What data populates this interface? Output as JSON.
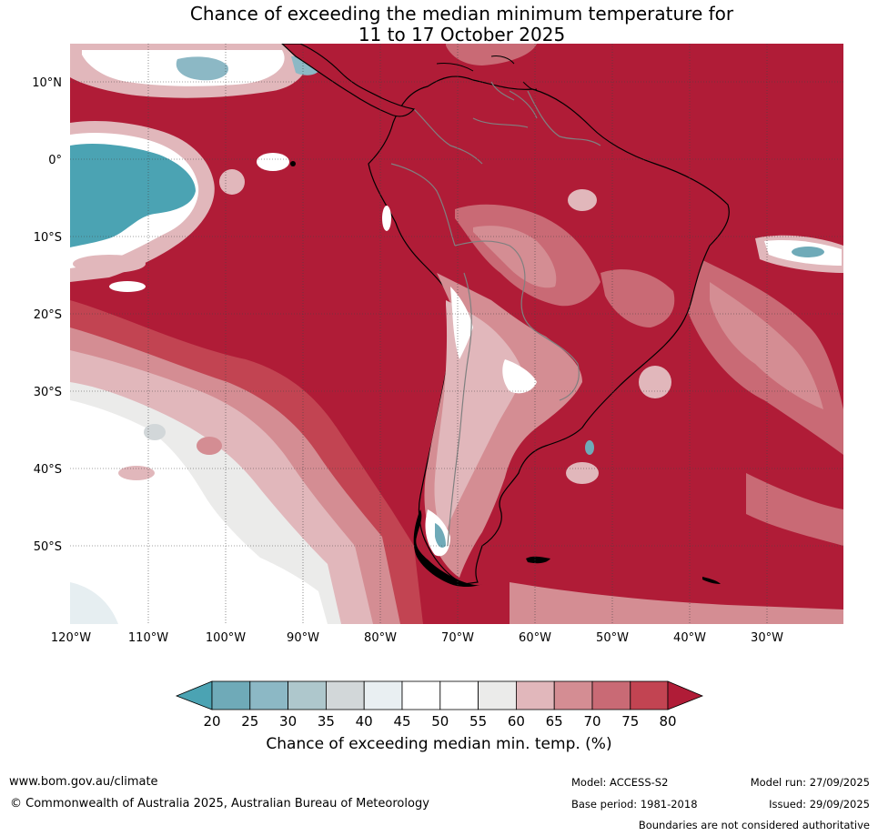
{
  "title_line1": "Chance of exceeding the median minimum temperature for",
  "title_line2": "11 to 17 October 2025",
  "map": {
    "lon_ticks": [
      "120°W",
      "110°W",
      "100°W",
      "90°W",
      "80°W",
      "70°W",
      "60°W",
      "50°W",
      "40°W",
      "30°W"
    ],
    "lat_ticks": [
      "10°N",
      "0°",
      "10°S",
      "20°S",
      "30°S",
      "40°S",
      "50°S"
    ],
    "colors": {
      "ocean_warm": "#b01c37",
      "red_75": "#c24452",
      "red_70": "#c96a75",
      "pink_65": "#d48d93",
      "pink_60": "#e1b7bb",
      "grey_55": "#ebebea",
      "white_50": "#ffffff",
      "blue_light": "#e6eef1",
      "teal": "#4ba3b3",
      "coast": "#000000",
      "border": "#808080"
    }
  },
  "colorbar": {
    "ticks": [
      "20",
      "25",
      "30",
      "35",
      "40",
      "45",
      "50",
      "55",
      "60",
      "65",
      "70",
      "75",
      "80"
    ],
    "colors": [
      "#4ba3b3",
      "#6faab8",
      "#8cb8c5",
      "#aec7cc",
      "#d2d7d9",
      "#e9eff2",
      "#ffffff",
      "#ffffff",
      "#ebebea",
      "#e1b7bb",
      "#d48d93",
      "#c96a75",
      "#c24452",
      "#b01c37"
    ],
    "label": "Chance of exceeding median min. temp. (%)"
  },
  "footer": {
    "website": "www.bom.gov.au/climate",
    "copyright": "© Commonwealth of Australia 2025, Australian Bureau of Meteorology",
    "model": "Model: ACCESS-S2",
    "base_period": "Base period: 1981-2018",
    "model_run": "Model run: 27/09/2025",
    "issued": "Issued: 29/09/2025",
    "boundaries": "Boundaries are not considered authoritative"
  }
}
